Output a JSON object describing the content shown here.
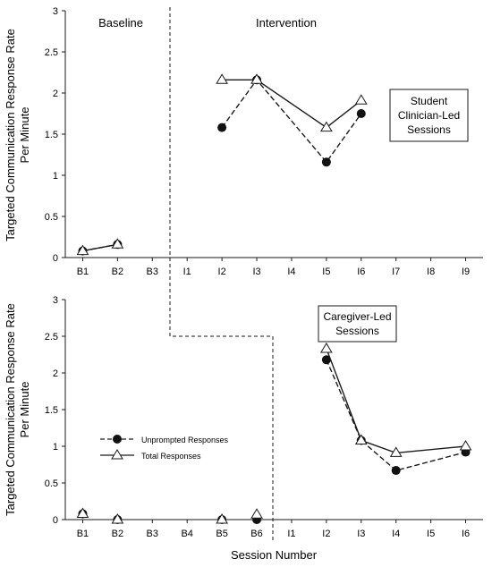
{
  "figure": {
    "x_axis_label": "Session Number",
    "phases": [
      "Baseline",
      "Intervention"
    ]
  },
  "chart_data": [
    {
      "type": "line",
      "panel": "top",
      "box_label": [
        "Student",
        "Clinician-Led",
        "Sessions"
      ],
      "ylabel": [
        "Targeted Communication Response Rate",
        "Per Minute"
      ],
      "xlabel": "",
      "ylim": [
        0,
        3
      ],
      "yticks": [
        "0",
        "0.5",
        "1",
        "1.5",
        "2",
        "2.5",
        "3"
      ],
      "categories": [
        "B1",
        "B2",
        "B3",
        "I1",
        "I2",
        "I3",
        "I4",
        "I5",
        "I6",
        "I7",
        "I8",
        "I9"
      ],
      "series": [
        {
          "name": "Unprompted Responses",
          "marker": "filled-circle",
          "dash": true,
          "segments": [
            [
              [
                0,
                0.08
              ],
              [
                1,
                0.16
              ]
            ],
            [
              [
                4,
                1.58
              ],
              [
                5,
                2.16
              ],
              [
                7,
                1.16
              ],
              [
                8,
                1.75
              ]
            ]
          ]
        },
        {
          "name": "Total Responses",
          "marker": "open-triangle",
          "dash": false,
          "segments": [
            [
              [
                0,
                0.08
              ],
              [
                1,
                0.16
              ]
            ],
            [
              [
                4,
                2.16
              ],
              [
                5,
                2.16
              ],
              [
                7,
                1.58
              ],
              [
                8,
                1.91
              ]
            ]
          ]
        }
      ]
    },
    {
      "type": "line",
      "panel": "bottom",
      "box_label": [
        "Caregiver-Led",
        "Sessions"
      ],
      "ylabel": [
        "Targeted Communication Response Rate",
        "Per Minute"
      ],
      "xlabel": "Session Number",
      "ylim": [
        0,
        3
      ],
      "yticks": [
        "0",
        "0.5",
        "1",
        "1.5",
        "2",
        "2.5",
        "3"
      ],
      "categories": [
        "B1",
        "B2",
        "B3",
        "B4",
        "B5",
        "B6",
        "I1",
        "I2",
        "I3",
        "I4",
        "I5",
        "I6"
      ],
      "legend": [
        "Unprompted Responses",
        "Total Responses"
      ],
      "series": [
        {
          "name": "Unprompted Responses",
          "marker": "filled-circle",
          "dash": true,
          "points": [
            [
              0,
              0.08
            ],
            [
              1,
              0.0
            ],
            [
              4,
              0.0
            ],
            [
              5,
              0.0
            ]
          ],
          "segments": [
            [
              [
                7,
                2.18
              ],
              [
                8,
                1.08
              ],
              [
                9,
                0.67
              ],
              [
                11,
                0.92
              ]
            ]
          ]
        },
        {
          "name": "Total Responses",
          "marker": "open-triangle",
          "dash": false,
          "points": [
            [
              0,
              0.08
            ],
            [
              1,
              0.0
            ],
            [
              4,
              0.0
            ],
            [
              5,
              0.07
            ]
          ],
          "segments": [
            [
              [
                7,
                2.33
              ],
              [
                8,
                1.08
              ],
              [
                9,
                0.91
              ],
              [
                11,
                1.0
              ]
            ]
          ]
        }
      ]
    }
  ]
}
